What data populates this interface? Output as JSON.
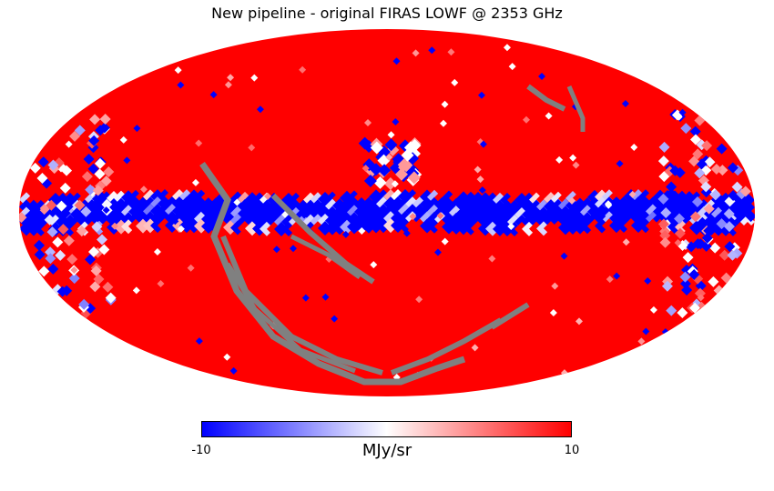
{
  "title": "New pipeline - original FIRAS LOWF @ 2353 GHz",
  "projection": "mollweide",
  "colormap": {
    "name": "bwr",
    "low_color": "#0000ff",
    "mid_color": "#ffffff",
    "high_color": "#ff0000",
    "nan_color": "#808080",
    "min": -10,
    "max": 10,
    "min_label": "-10",
    "max_label": "10",
    "unit_label": "MJy/sr"
  },
  "map_description_values": {
    "dominant_value": "10 (saturated red)",
    "galactic_plane_value": "-10 (saturated blue)",
    "missing_data_color": "#808080"
  }
}
